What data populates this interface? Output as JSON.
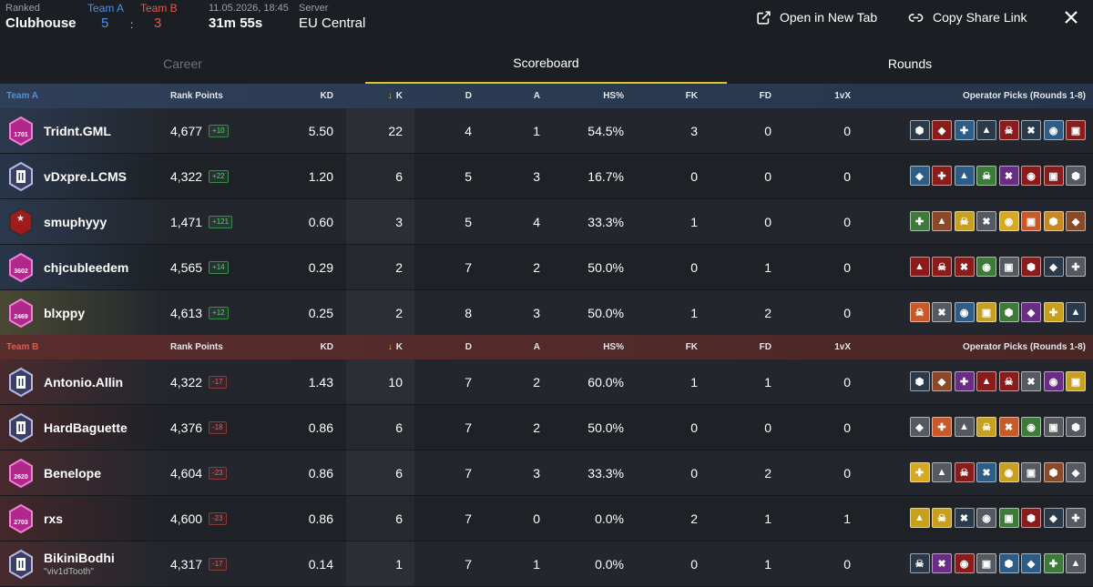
{
  "match": {
    "mode_label": "Ranked",
    "map": "Clubhouse",
    "team_a_label": "Team A",
    "team_a_score": "5",
    "team_b_label": "Team B",
    "team_b_score": "3",
    "score_sep": ":",
    "datetime": "11.05.2026, 18:45",
    "duration": "31m 55s",
    "server_label": "Server",
    "server": "EU Central"
  },
  "actions": {
    "open_new_tab": "Open in New Tab",
    "copy_share_link": "Copy Share Link"
  },
  "tabs": [
    "Career",
    "Scoreboard",
    "Rounds"
  ],
  "columns": {
    "rank_points": "Rank Points",
    "kd": "KD",
    "k": "K",
    "d": "D",
    "a": "A",
    "hs": "HS%",
    "fk": "FK",
    "fd": "FD",
    "onevx": "1vX",
    "ops": "Operator Picks (Rounds 1-8)"
  },
  "teams": [
    {
      "name": "Team A",
      "players": [
        {
          "name": "Tridnt.GML",
          "sub": "",
          "rank_num": "1701",
          "rank_type": "pink",
          "rp": "4,677",
          "delta": "+10",
          "dir": "up",
          "kd": "5.50",
          "k": "22",
          "d": "4",
          "a": "1",
          "hs": "54.5%",
          "fk": "3",
          "fd": "0",
          "onevx": "0",
          "ops": [
            "#2b3a4a",
            "#8a1c1c",
            "#2d5d86",
            "#2b3a4a",
            "#8a1c1c",
            "#2b3a4a",
            "#2d5d86",
            "#8a1c1c"
          ]
        },
        {
          "name": "vDxpre.LCMS",
          "sub": "",
          "rank_num": "",
          "rank_type": "silver",
          "rp": "4,322",
          "delta": "+22",
          "dir": "up",
          "kd": "1.20",
          "k": "6",
          "d": "5",
          "a": "3",
          "hs": "16.7%",
          "fk": "0",
          "fd": "0",
          "onevx": "0",
          "ops": [
            "#2d5d86",
            "#8a1c1c",
            "#2d5d86",
            "#3e7a3a",
            "#6a2d86",
            "#8a1c1c",
            "#8a1c1c",
            "#555a60"
          ]
        },
        {
          "name": "smuphyyy",
          "sub": "",
          "rank_num": "",
          "rank_type": "red",
          "rp": "1,471",
          "delta": "+121",
          "dir": "up",
          "kd": "0.60",
          "k": "3",
          "d": "5",
          "a": "4",
          "hs": "33.3%",
          "fk": "1",
          "fd": "0",
          "onevx": "0",
          "ops": [
            "#3e7a3a",
            "#8a4a2a",
            "#c8a020",
            "#555a60",
            "#d8a820",
            "#c85a2a",
            "#c88a20",
            "#8a4a2a"
          ]
        },
        {
          "name": "chjcubleedem",
          "sub": "",
          "rank_num": "3602",
          "rank_type": "pink",
          "rp": "4,565",
          "delta": "+14",
          "dir": "up",
          "kd": "0.29",
          "k": "2",
          "d": "7",
          "a": "2",
          "hs": "50.0%",
          "fk": "0",
          "fd": "1",
          "onevx": "0",
          "ops": [
            "#8a1c1c",
            "#8a1c1c",
            "#8a1c1c",
            "#3e7a3a",
            "#555a60",
            "#8a1c1c",
            "#2b3a4a",
            "#555a60"
          ]
        },
        {
          "name": "blxppy",
          "sub": "",
          "rank_num": "2469",
          "rank_type": "pink",
          "rp": "4,613",
          "delta": "+12",
          "dir": "up",
          "kd": "0.25",
          "k": "2",
          "d": "8",
          "a": "3",
          "hs": "50.0%",
          "fk": "1",
          "fd": "2",
          "onevx": "0",
          "ops": [
            "#c85a2a",
            "#555a60",
            "#2d5d86",
            "#c8a020",
            "#3e7a3a",
            "#6a2d86",
            "#c8a020",
            "#2b3a4a"
          ]
        }
      ]
    },
    {
      "name": "Team B",
      "players": [
        {
          "name": "Antonio.Allin",
          "sub": "",
          "rank_num": "",
          "rank_type": "silver",
          "rp": "4,322",
          "delta": "-17",
          "dir": "down",
          "kd": "1.43",
          "k": "10",
          "d": "7",
          "a": "2",
          "hs": "60.0%",
          "fk": "1",
          "fd": "1",
          "onevx": "0",
          "ops": [
            "#2b3a4a",
            "#8a4a2a",
            "#6a2d86",
            "#8a1c1c",
            "#8a1c1c",
            "#555a60",
            "#6a2d86",
            "#c8a020"
          ]
        },
        {
          "name": "HardBaguette",
          "sub": "",
          "rank_num": "",
          "rank_type": "silver",
          "rp": "4,376",
          "delta": "-18",
          "dir": "down",
          "kd": "0.86",
          "k": "6",
          "d": "7",
          "a": "2",
          "hs": "50.0%",
          "fk": "0",
          "fd": "0",
          "onevx": "0",
          "ops": [
            "#555a60",
            "#c85a2a",
            "#555a60",
            "#c8a020",
            "#c85a2a",
            "#3e7a3a",
            "#555a60",
            "#555a60"
          ]
        },
        {
          "name": "Benelope",
          "sub": "",
          "rank_num": "2620",
          "rank_type": "pink",
          "rp": "4,604",
          "delta": "-23",
          "dir": "down",
          "kd": "0.86",
          "k": "6",
          "d": "7",
          "a": "3",
          "hs": "33.3%",
          "fk": "0",
          "fd": "2",
          "onevx": "0",
          "ops": [
            "#d8a820",
            "#555a60",
            "#8a1c1c",
            "#2d5d86",
            "#c8a020",
            "#555a60",
            "#8a4a2a",
            "#555a60"
          ]
        },
        {
          "name": "rxs",
          "sub": "",
          "rank_num": "2703",
          "rank_type": "pink",
          "rp": "4,600",
          "delta": "-23",
          "dir": "down",
          "kd": "0.86",
          "k": "6",
          "d": "7",
          "a": "0",
          "hs": "0.0%",
          "fk": "2",
          "fd": "1",
          "onevx": "1",
          "ops": [
            "#c8a020",
            "#c8a020",
            "#2b3a4a",
            "#555a60",
            "#3e7a3a",
            "#8a1c1c",
            "#2b3a4a",
            "#555a60"
          ]
        },
        {
          "name": "BikiniBodhi",
          "sub": "\"viv1dTooth\"",
          "rank_num": "",
          "rank_type": "silver",
          "rp": "4,317",
          "delta": "-17",
          "dir": "down",
          "kd": "0.14",
          "k": "1",
          "d": "7",
          "a": "1",
          "hs": "0.0%",
          "fk": "0",
          "fd": "1",
          "onevx": "0",
          "ops": [
            "#2b3a4a",
            "#6a2d86",
            "#8a1c1c",
            "#555a60",
            "#2d5d86",
            "#2d5d86",
            "#3e7a3a",
            "#555a60"
          ]
        }
      ]
    }
  ]
}
